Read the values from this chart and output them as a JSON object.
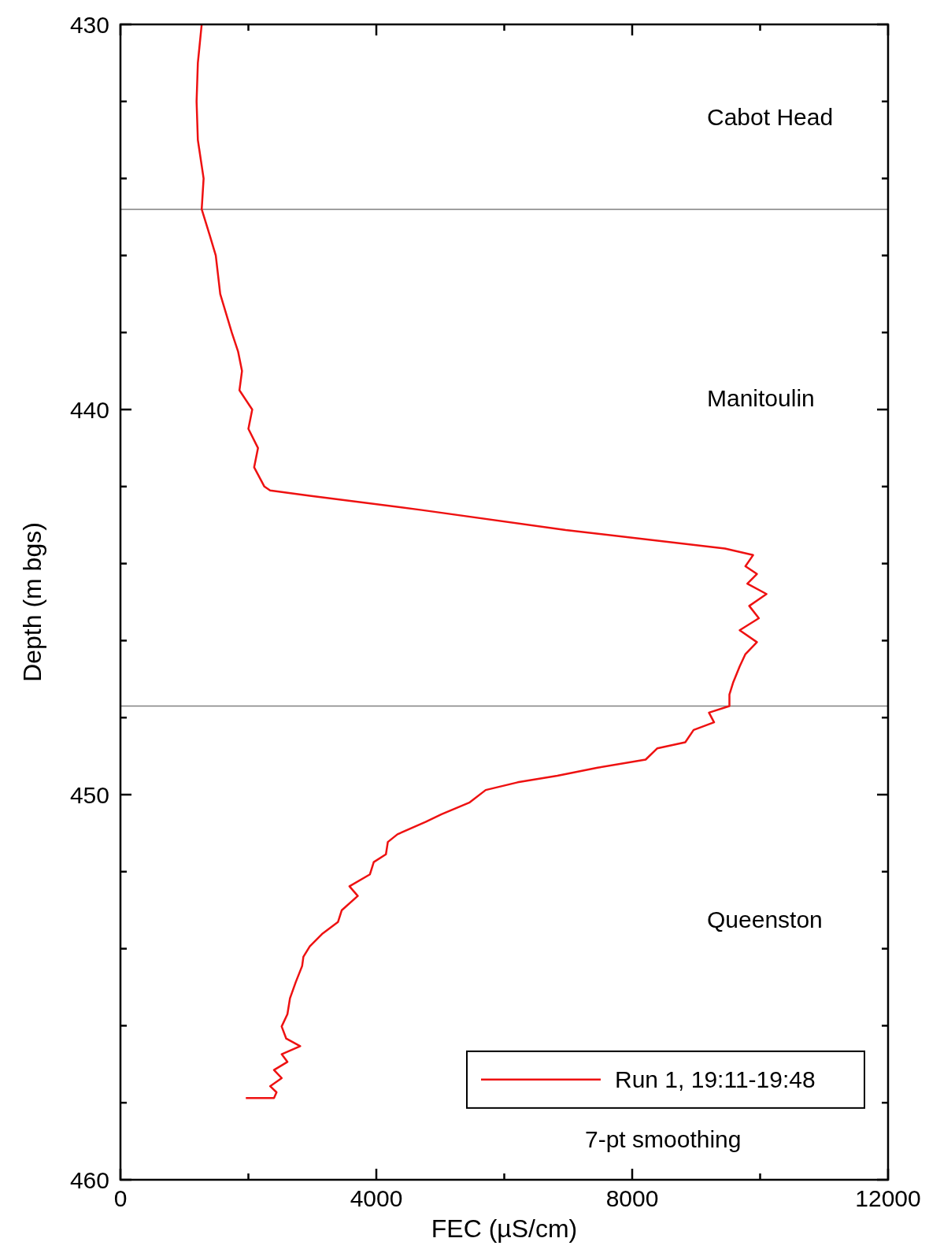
{
  "chart_data": {
    "type": "line",
    "xlabel": "FEC (µS/cm)",
    "ylabel": "Depth (m bgs)",
    "xlim": [
      0,
      12000
    ],
    "ylim": [
      460,
      430
    ],
    "xticks": [
      0,
      {
        "value": 2000,
        "label": null
      },
      4000,
      {
        "value": 6000,
        "label": null
      },
      8000,
      {
        "value": 10000,
        "label": null
      },
      12000
    ],
    "yticks": [
      430,
      {
        "value": 432,
        "label": null
      },
      {
        "value": 434,
        "label": null
      },
      {
        "value": 436,
        "label": null
      },
      {
        "value": 438,
        "label": null
      },
      440,
      {
        "value": 442,
        "label": null
      },
      {
        "value": 444,
        "label": null
      },
      {
        "value": 446,
        "label": null
      },
      {
        "value": 448,
        "label": null
      },
      450,
      {
        "value": 452,
        "label": null
      },
      {
        "value": 454,
        "label": null
      },
      {
        "value": 456,
        "label": null
      },
      {
        "value": 458,
        "label": null
      },
      460
    ],
    "series": [
      {
        "name": "Run 1, 19:11-19:48",
        "color": "#ee1111",
        "x": [
          1270,
          1210,
          1190,
          1210,
          1300,
          1270,
          1400,
          1490,
          1560,
          1740,
          1840,
          1900,
          1860,
          2060,
          2000,
          2150,
          2090,
          2250,
          2340,
          2960,
          4710,
          6960,
          9450,
          9890,
          9770,
          9950,
          9800,
          10100,
          9830,
          9980,
          9680,
          9950,
          9770,
          9680,
          9580,
          9520,
          9520,
          9200,
          9280,
          8960,
          8830,
          8390,
          8210,
          7460,
          6830,
          6210,
          5710,
          5460,
          5020,
          4770,
          4330,
          4180,
          4150,
          3960,
          3900,
          3580,
          3710,
          3460,
          3400,
          3150,
          2960,
          2860,
          2840,
          2740,
          2650,
          2610,
          2520,
          2590,
          2810,
          2520,
          2610,
          2400,
          2520,
          2340,
          2440,
          2400,
          1960
        ],
        "values": [
          430.0,
          431.0,
          432.0,
          433.0,
          434.0,
          434.8,
          435.5,
          436.0,
          437.0,
          438.0,
          438.5,
          439.0,
          439.5,
          440.0,
          440.5,
          441.0,
          441.5,
          442.0,
          442.1,
          442.24,
          442.61,
          443.13,
          443.61,
          443.78,
          444.07,
          444.27,
          444.52,
          444.79,
          445.1,
          445.42,
          445.73,
          446.04,
          446.35,
          446.67,
          447.08,
          447.4,
          447.7,
          447.87,
          448.12,
          448.32,
          448.64,
          448.8,
          449.09,
          449.3,
          449.51,
          449.68,
          449.88,
          450.2,
          450.51,
          450.71,
          451.03,
          451.23,
          451.55,
          451.75,
          452.07,
          452.38,
          452.63,
          453.0,
          453.31,
          453.62,
          453.94,
          454.21,
          454.45,
          454.87,
          455.29,
          455.7,
          456.02,
          456.33,
          456.53,
          456.74,
          456.94,
          457.15,
          457.36,
          457.57,
          457.73,
          457.88,
          457.88
        ]
      }
    ],
    "ref_lines": [
      {
        "axis": "y",
        "value": 434.8,
        "color": "#808080"
      },
      {
        "axis": "y",
        "value": 447.7,
        "color": "#808080"
      }
    ],
    "annotations": [
      "Cabot Head",
      "Manitoulin",
      "Queenston",
      "7-pt smoothing"
    ],
    "legend": "bottom right",
    "marker": "none",
    "line_style": "solid",
    "grid": false
  }
}
